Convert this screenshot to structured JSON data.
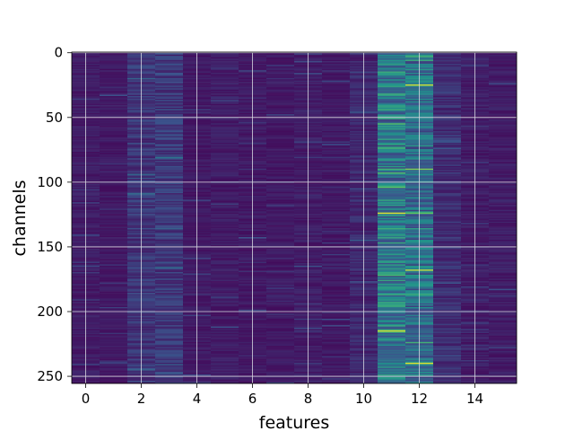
{
  "chart_data": {
    "type": "heatmap",
    "title": "",
    "xlabel": "features",
    "ylabel": "channels",
    "x_range": [
      -0.5,
      15.5
    ],
    "y_range": [
      -0.5,
      255.5
    ],
    "y_inverted": true,
    "x_ticks": [
      0,
      2,
      4,
      6,
      8,
      10,
      12,
      14
    ],
    "y_ticks": [
      0,
      50,
      100,
      150,
      200,
      250
    ],
    "n_features": 16,
    "n_channels": 256,
    "colormap": "viridis",
    "value_range": [
      0,
      1
    ],
    "grid": true,
    "column_profile": [
      0.09,
      0.08,
      0.18,
      0.19,
      0.08,
      0.09,
      0.08,
      0.08,
      0.09,
      0.08,
      0.13,
      0.45,
      0.4,
      0.15,
      0.09,
      0.09
    ],
    "highlights": [
      {
        "feature": 11,
        "channel": 124,
        "value": 0.95
      },
      {
        "feature": 11,
        "channel": 215,
        "value": 0.93
      },
      {
        "feature": 11,
        "channel": 55,
        "value": 0.7
      },
      {
        "feature": 11,
        "channel": 90,
        "value": 0.65
      },
      {
        "feature": 11,
        "channel": 147,
        "value": 0.6
      },
      {
        "feature": 12,
        "channel": 25,
        "value": 0.92
      },
      {
        "feature": 12,
        "channel": 90,
        "value": 0.8
      },
      {
        "feature": 12,
        "channel": 124,
        "value": 0.75
      },
      {
        "feature": 12,
        "channel": 168,
        "value": 0.9
      },
      {
        "feature": 12,
        "channel": 240,
        "value": 0.95
      },
      {
        "feature": 12,
        "channel": 187,
        "value": 0.6
      },
      {
        "feature": 12,
        "channel": 136,
        "value": 0.55
      }
    ]
  },
  "colors": {
    "grid": "#d7d7e0",
    "axis": "#000000",
    "viridis_low": "#440154",
    "viridis_mid": "#21908d",
    "viridis_high": "#fde725"
  }
}
